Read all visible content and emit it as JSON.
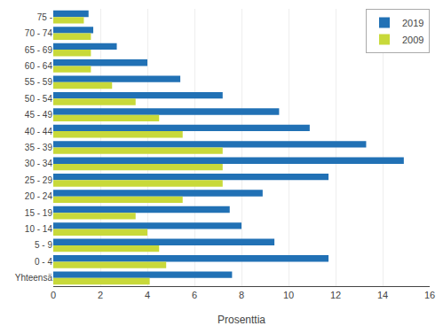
{
  "chart_data": {
    "type": "bar",
    "orientation": "horizontal",
    "categories": [
      "75 -",
      "70 - 74",
      "65 - 69",
      "60 - 64",
      "55 - 59",
      "50 - 54",
      "45 - 49",
      "40 - 44",
      "35 - 39",
      "30 - 34",
      "25 - 29",
      "20 - 24",
      "15 - 19",
      "10 - 14",
      "5 - 9",
      "0 - 4",
      "Yhteensä"
    ],
    "series": [
      {
        "name": "2019",
        "color": "#2171b5",
        "values": [
          1.5,
          1.7,
          2.7,
          4.0,
          5.4,
          7.2,
          9.6,
          10.9,
          13.3,
          14.9,
          11.7,
          8.9,
          7.5,
          8.0,
          9.4,
          11.7,
          7.6
        ]
      },
      {
        "name": "2009",
        "color": "#c8d93a",
        "values": [
          1.3,
          1.6,
          1.6,
          1.6,
          2.5,
          3.5,
          4.5,
          5.5,
          7.2,
          7.2,
          7.2,
          5.5,
          3.5,
          4.0,
          4.5,
          4.8,
          4.1
        ]
      }
    ],
    "xlabel": "Prosenttia",
    "xlim": [
      0,
      16
    ],
    "xticks": [
      0,
      2,
      4,
      6,
      8,
      10,
      12,
      14,
      16
    ],
    "grid": true,
    "legend": "upper right"
  }
}
